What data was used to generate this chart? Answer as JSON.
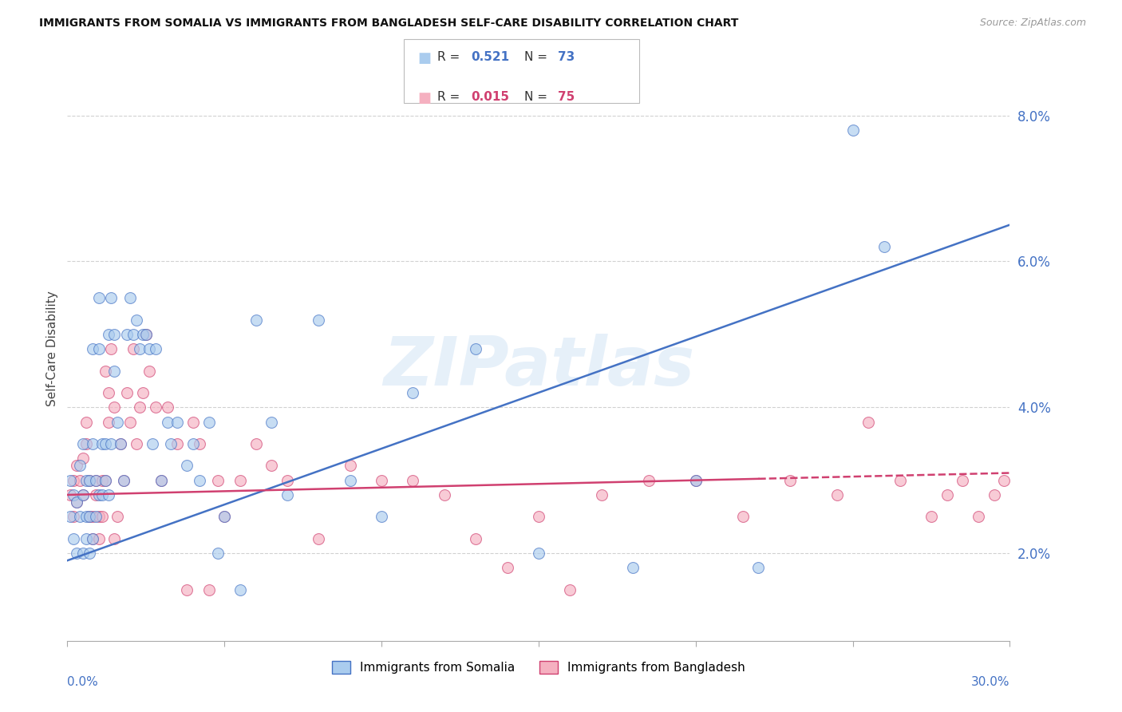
{
  "title": "IMMIGRANTS FROM SOMALIA VS IMMIGRANTS FROM BANGLADESH SELF-CARE DISABILITY CORRELATION CHART",
  "source": "Source: ZipAtlas.com",
  "ylabel": "Self-Care Disability",
  "xmin": 0.0,
  "xmax": 0.3,
  "ymin": 0.008,
  "ymax": 0.088,
  "xticks": [
    0.0,
    0.05,
    0.1,
    0.15,
    0.2,
    0.25,
    0.3
  ],
  "yticks": [
    0.02,
    0.04,
    0.06,
    0.08
  ],
  "ytick_labels": [
    "2.0%",
    "4.0%",
    "6.0%",
    "8.0%"
  ],
  "somalia_fill": "#aaccee",
  "somalia_edge": "#4472c4",
  "somalia_line": "#4472c4",
  "bangladesh_fill": "#f5b0c0",
  "bangladesh_edge": "#d04070",
  "bangladesh_line": "#d04070",
  "watermark": "ZIPatlas",
  "somalia_R": "0.521",
  "somalia_N": "73",
  "bangladesh_R": "0.015",
  "bangladesh_N": "75",
  "somalia_label": "Immigrants from Somalia",
  "bangladesh_label": "Immigrants from Bangladesh",
  "somalia_x": [
    0.001,
    0.001,
    0.002,
    0.002,
    0.003,
    0.003,
    0.004,
    0.004,
    0.005,
    0.005,
    0.005,
    0.006,
    0.006,
    0.006,
    0.007,
    0.007,
    0.007,
    0.008,
    0.008,
    0.008,
    0.009,
    0.009,
    0.01,
    0.01,
    0.01,
    0.011,
    0.011,
    0.012,
    0.012,
    0.013,
    0.013,
    0.014,
    0.014,
    0.015,
    0.015,
    0.016,
    0.017,
    0.018,
    0.019,
    0.02,
    0.021,
    0.022,
    0.023,
    0.024,
    0.025,
    0.026,
    0.027,
    0.028,
    0.03,
    0.032,
    0.033,
    0.035,
    0.038,
    0.04,
    0.042,
    0.045,
    0.048,
    0.05,
    0.055,
    0.06,
    0.065,
    0.07,
    0.08,
    0.09,
    0.1,
    0.11,
    0.13,
    0.15,
    0.18,
    0.2,
    0.22,
    0.25,
    0.26
  ],
  "somalia_y": [
    0.03,
    0.025,
    0.028,
    0.022,
    0.027,
    0.02,
    0.032,
    0.025,
    0.028,
    0.02,
    0.035,
    0.03,
    0.025,
    0.022,
    0.03,
    0.025,
    0.02,
    0.048,
    0.035,
    0.022,
    0.03,
    0.025,
    0.055,
    0.048,
    0.028,
    0.035,
    0.028,
    0.035,
    0.03,
    0.05,
    0.028,
    0.055,
    0.035,
    0.05,
    0.045,
    0.038,
    0.035,
    0.03,
    0.05,
    0.055,
    0.05,
    0.052,
    0.048,
    0.05,
    0.05,
    0.048,
    0.035,
    0.048,
    0.03,
    0.038,
    0.035,
    0.038,
    0.032,
    0.035,
    0.03,
    0.038,
    0.02,
    0.025,
    0.015,
    0.052,
    0.038,
    0.028,
    0.052,
    0.03,
    0.025,
    0.042,
    0.048,
    0.02,
    0.018,
    0.03,
    0.018,
    0.078,
    0.062
  ],
  "bangladesh_x": [
    0.001,
    0.002,
    0.002,
    0.003,
    0.003,
    0.004,
    0.005,
    0.005,
    0.006,
    0.006,
    0.007,
    0.007,
    0.008,
    0.008,
    0.009,
    0.009,
    0.01,
    0.01,
    0.011,
    0.011,
    0.012,
    0.012,
    0.013,
    0.013,
    0.014,
    0.015,
    0.015,
    0.016,
    0.017,
    0.018,
    0.019,
    0.02,
    0.021,
    0.022,
    0.023,
    0.024,
    0.025,
    0.026,
    0.028,
    0.03,
    0.032,
    0.035,
    0.038,
    0.04,
    0.042,
    0.045,
    0.048,
    0.05,
    0.055,
    0.06,
    0.065,
    0.07,
    0.08,
    0.09,
    0.1,
    0.11,
    0.12,
    0.13,
    0.14,
    0.15,
    0.16,
    0.17,
    0.185,
    0.2,
    0.215,
    0.23,
    0.245,
    0.255,
    0.265,
    0.275,
    0.28,
    0.285,
    0.29,
    0.295,
    0.298
  ],
  "bangladesh_y": [
    0.028,
    0.03,
    0.025,
    0.032,
    0.027,
    0.03,
    0.033,
    0.028,
    0.038,
    0.035,
    0.03,
    0.025,
    0.025,
    0.022,
    0.03,
    0.028,
    0.025,
    0.022,
    0.03,
    0.025,
    0.045,
    0.03,
    0.042,
    0.038,
    0.048,
    0.04,
    0.022,
    0.025,
    0.035,
    0.03,
    0.042,
    0.038,
    0.048,
    0.035,
    0.04,
    0.042,
    0.05,
    0.045,
    0.04,
    0.03,
    0.04,
    0.035,
    0.015,
    0.038,
    0.035,
    0.015,
    0.03,
    0.025,
    0.03,
    0.035,
    0.032,
    0.03,
    0.022,
    0.032,
    0.03,
    0.03,
    0.028,
    0.022,
    0.018,
    0.025,
    0.015,
    0.028,
    0.03,
    0.03,
    0.025,
    0.03,
    0.028,
    0.038,
    0.03,
    0.025,
    0.028,
    0.03,
    0.025,
    0.028,
    0.03
  ]
}
